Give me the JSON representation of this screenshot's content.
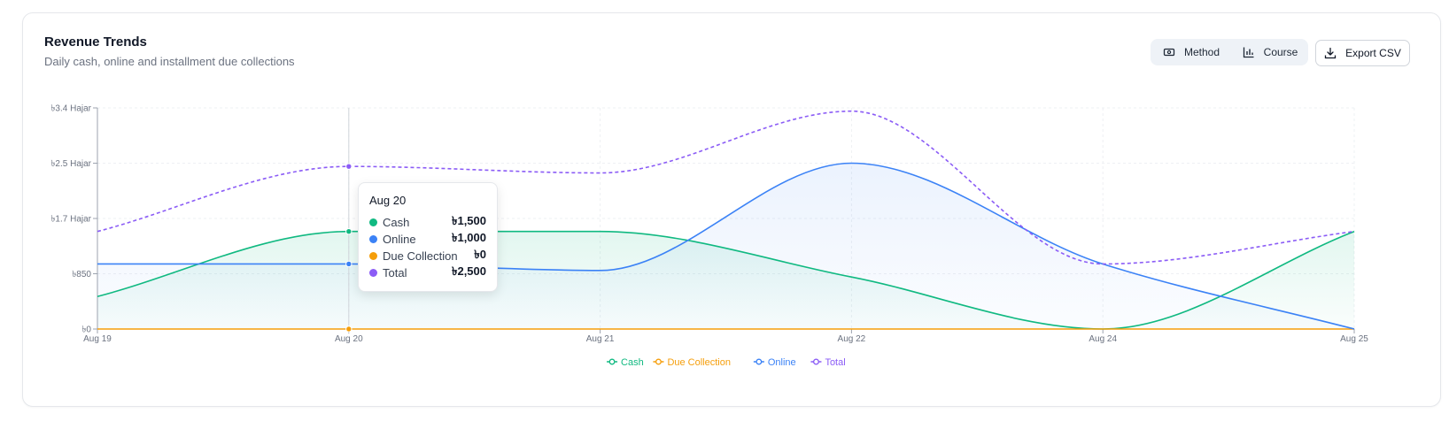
{
  "header": {
    "title": "Revenue Trends",
    "subtitle": "Daily cash, online and installment due collections"
  },
  "toolbar": {
    "method_label": "Method",
    "course_label": "Course",
    "export_label": "Export CSV",
    "method_icon": "cash-icon",
    "course_icon": "bar-chart-icon",
    "export_icon": "download-icon"
  },
  "chart_data": {
    "type": "line",
    "categories": [
      "Aug 19",
      "Aug 20",
      "Aug 21",
      "Aug 22",
      "Aug 24",
      "Aug 25"
    ],
    "y_ticks": [
      "৳0",
      "৳850",
      "৳1.7 Hajar",
      "৳2.5 Hajar",
      "৳3.4 Hajar"
    ],
    "y_tick_values": [
      0,
      850,
      1700,
      2550,
      3400
    ],
    "ylim": [
      0,
      3400
    ],
    "grid": true,
    "legend_position": "bottom",
    "series": [
      {
        "name": "Cash",
        "color": "#10b981",
        "area": true,
        "dashed": false,
        "values": [
          500,
          1500,
          1500,
          800,
          0,
          1500
        ]
      },
      {
        "name": "Due Collection",
        "color": "#f59e0b",
        "area": false,
        "dashed": false,
        "values": [
          0,
          0,
          0,
          0,
          0,
          0
        ]
      },
      {
        "name": "Online",
        "color": "#3b82f6",
        "area": true,
        "dashed": false,
        "values": [
          1000,
          1000,
          900,
          2550,
          1000,
          0
        ]
      },
      {
        "name": "Total",
        "color": "#8b5cf6",
        "area": false,
        "dashed": true,
        "values": [
          1500,
          2500,
          2400,
          3350,
          1000,
          1500
        ]
      }
    ],
    "tooltip": {
      "title": "Aug 20",
      "rows": [
        {
          "label": "Cash",
          "value": "৳1,500",
          "color": "#10b981"
        },
        {
          "label": "Online",
          "value": "৳1,000",
          "color": "#3b82f6"
        },
        {
          "label": "Due Collection",
          "value": "৳0",
          "color": "#f59e0b"
        },
        {
          "label": "Total",
          "value": "৳2,500",
          "color": "#8b5cf6"
        }
      ]
    },
    "active_index": 1
  }
}
